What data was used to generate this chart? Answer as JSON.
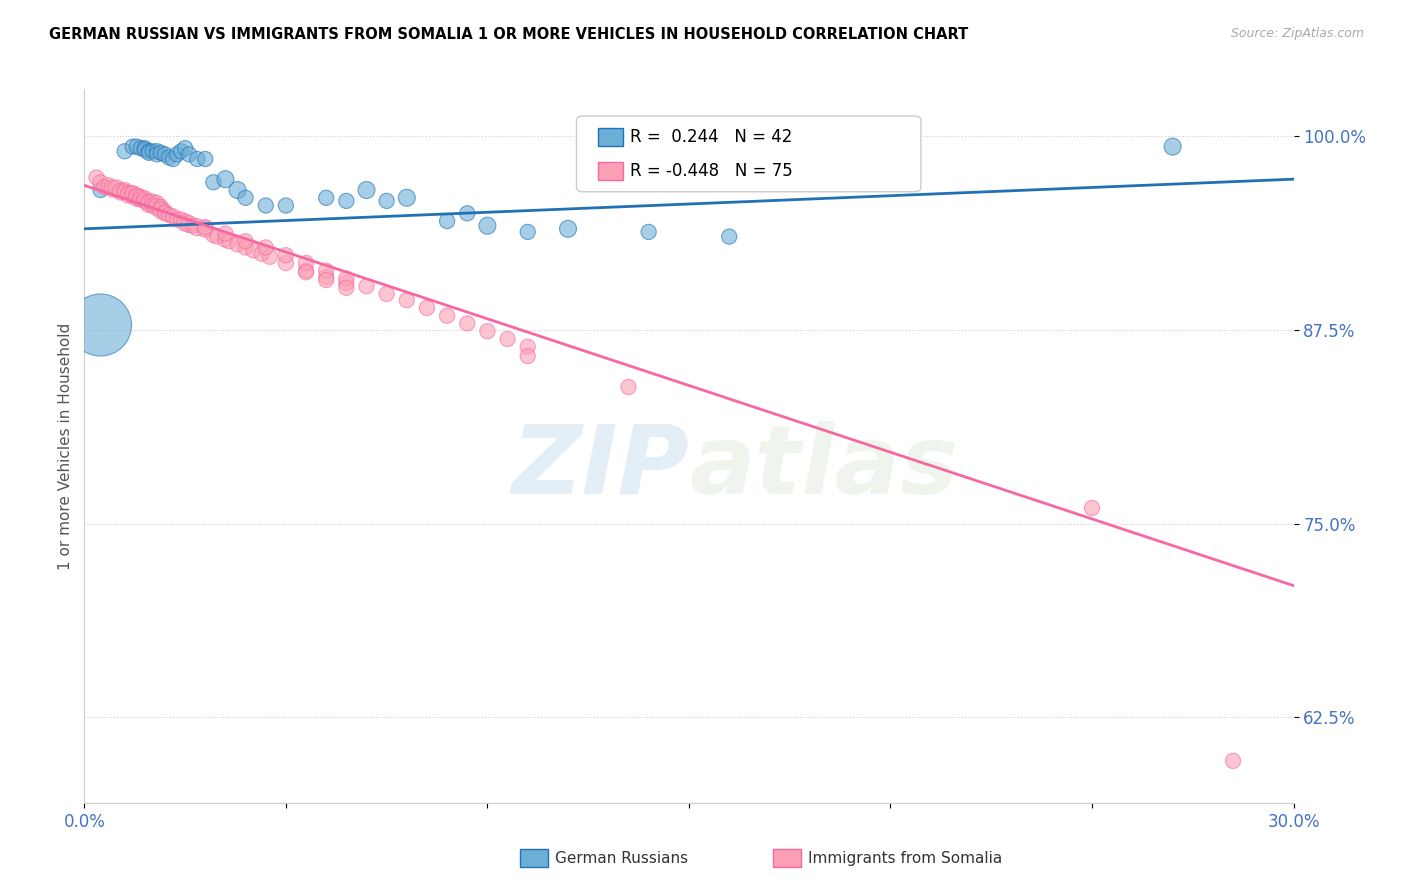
{
  "title": "GERMAN RUSSIAN VS IMMIGRANTS FROM SOMALIA 1 OR MORE VEHICLES IN HOUSEHOLD CORRELATION CHART",
  "source": "Source: ZipAtlas.com",
  "ylabel": "1 or more Vehicles in Household",
  "xlim": [
    0.0,
    0.3
  ],
  "ylim": [
    0.57,
    1.03
  ],
  "yticks": [
    0.625,
    0.75,
    0.875,
    1.0
  ],
  "ytick_labels": [
    "62.5%",
    "75.0%",
    "87.5%",
    "100.0%"
  ],
  "xticks": [
    0.0,
    0.05,
    0.1,
    0.15,
    0.2,
    0.25,
    0.3
  ],
  "xtick_labels": [
    "0.0%",
    "",
    "",
    "",
    "",
    "",
    "30.0%"
  ],
  "legend_blue_label": "German Russians",
  "legend_pink_label": "Immigrants from Somalia",
  "R_blue": 0.244,
  "N_blue": 42,
  "R_pink": -0.448,
  "N_pink": 75,
  "blue_line_x": [
    0.0,
    0.3
  ],
  "blue_line_y": [
    0.94,
    0.972
  ],
  "pink_line_x": [
    0.0,
    0.3
  ],
  "pink_line_y": [
    0.968,
    0.71
  ],
  "blue_color": "#6baed6",
  "pink_color": "#fa9fb5",
  "blue_line_color": "#2171b5",
  "pink_line_color": "#f768a1",
  "watermark_zip": "ZIP",
  "watermark_atlas": "atlas",
  "blue_scatter_x": [
    0.01,
    0.012,
    0.013,
    0.014,
    0.015,
    0.015,
    0.016,
    0.016,
    0.017,
    0.018,
    0.018,
    0.019,
    0.02,
    0.021,
    0.022,
    0.023,
    0.024,
    0.025,
    0.026,
    0.028,
    0.03,
    0.032,
    0.035,
    0.038,
    0.04,
    0.045,
    0.05,
    0.06,
    0.065,
    0.07,
    0.075,
    0.08,
    0.09,
    0.095,
    0.1,
    0.11,
    0.12,
    0.14,
    0.16,
    0.004,
    0.27,
    0.004
  ],
  "blue_scatter_y": [
    0.99,
    0.993,
    0.993,
    0.992,
    0.992,
    0.991,
    0.99,
    0.989,
    0.99,
    0.99,
    0.988,
    0.989,
    0.988,
    0.986,
    0.985,
    0.988,
    0.99,
    0.992,
    0.988,
    0.985,
    0.985,
    0.97,
    0.972,
    0.965,
    0.96,
    0.955,
    0.955,
    0.96,
    0.958,
    0.965,
    0.958,
    0.96,
    0.945,
    0.95,
    0.942,
    0.938,
    0.94,
    0.938,
    0.935,
    0.965,
    0.993,
    0.878
  ],
  "blue_scatter_sizes": [
    120,
    120,
    120,
    120,
    120,
    120,
    120,
    120,
    120,
    120,
    120,
    120,
    120,
    120,
    120,
    120,
    120,
    120,
    120,
    120,
    120,
    120,
    150,
    150,
    120,
    120,
    120,
    120,
    120,
    150,
    120,
    150,
    120,
    120,
    150,
    120,
    150,
    120,
    120,
    120,
    150,
    2000
  ],
  "pink_scatter_x": [
    0.003,
    0.004,
    0.005,
    0.006,
    0.007,
    0.008,
    0.009,
    0.01,
    0.01,
    0.011,
    0.011,
    0.012,
    0.012,
    0.013,
    0.013,
    0.014,
    0.014,
    0.015,
    0.015,
    0.016,
    0.016,
    0.017,
    0.017,
    0.018,
    0.018,
    0.019,
    0.019,
    0.02,
    0.02,
    0.021,
    0.022,
    0.023,
    0.024,
    0.025,
    0.026,
    0.027,
    0.028,
    0.03,
    0.032,
    0.033,
    0.035,
    0.036,
    0.038,
    0.04,
    0.042,
    0.044,
    0.046,
    0.05,
    0.055,
    0.06,
    0.065,
    0.03,
    0.035,
    0.04,
    0.045,
    0.05,
    0.055,
    0.06,
    0.065,
    0.07,
    0.075,
    0.08,
    0.085,
    0.09,
    0.095,
    0.1,
    0.105,
    0.11,
    0.055,
    0.06,
    0.065,
    0.11,
    0.135,
    0.25,
    0.285
  ],
  "pink_scatter_y": [
    0.973,
    0.97,
    0.967,
    0.968,
    0.966,
    0.966,
    0.964,
    0.965,
    0.964,
    0.963,
    0.962,
    0.962,
    0.963,
    0.961,
    0.96,
    0.96,
    0.959,
    0.959,
    0.958,
    0.957,
    0.956,
    0.957,
    0.955,
    0.956,
    0.954,
    0.954,
    0.952,
    0.951,
    0.95,
    0.949,
    0.948,
    0.946,
    0.946,
    0.944,
    0.943,
    0.942,
    0.941,
    0.94,
    0.936,
    0.935,
    0.933,
    0.932,
    0.93,
    0.928,
    0.926,
    0.924,
    0.922,
    0.918,
    0.913,
    0.909,
    0.905,
    0.941,
    0.937,
    0.932,
    0.928,
    0.923,
    0.918,
    0.913,
    0.908,
    0.903,
    0.898,
    0.894,
    0.889,
    0.884,
    0.879,
    0.874,
    0.869,
    0.864,
    0.912,
    0.907,
    0.902,
    0.858,
    0.838,
    0.76,
    0.597
  ],
  "pink_scatter_sizes": [
    120,
    120,
    120,
    120,
    150,
    150,
    150,
    120,
    120,
    120,
    150,
    150,
    120,
    150,
    150,
    150,
    120,
    150,
    120,
    150,
    150,
    150,
    120,
    150,
    150,
    120,
    150,
    120,
    120,
    120,
    120,
    120,
    120,
    150,
    150,
    120,
    150,
    150,
    120,
    120,
    120,
    120,
    120,
    120,
    120,
    120,
    120,
    120,
    120,
    120,
    120,
    120,
    120,
    120,
    120,
    120,
    120,
    120,
    120,
    120,
    120,
    120,
    120,
    120,
    120,
    120,
    120,
    120,
    120,
    120,
    120,
    120,
    120,
    120,
    120
  ]
}
